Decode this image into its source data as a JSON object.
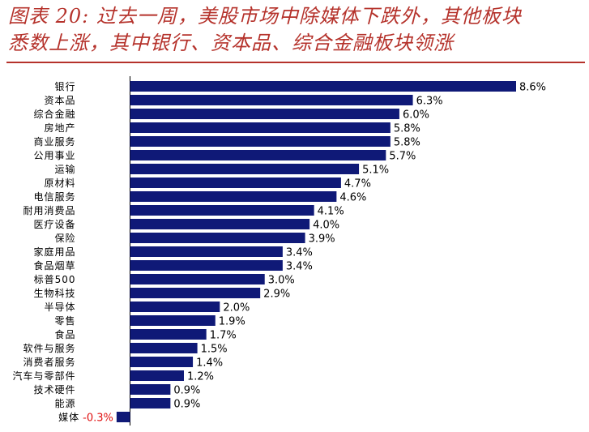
{
  "title": {
    "line1": "图表 20: 过去一周，美股市场中除媒体下跌外，其他板块",
    "line2": "悉数上涨，其中银行、资本品、综合金融板块领涨"
  },
  "colors": {
    "bar": "#0f1977",
    "title": "#b5322b",
    "negative_label": "#e01010"
  },
  "chart_data": {
    "type": "bar",
    "orientation": "horizontal",
    "categories": [
      "银行",
      "资本品",
      "综合金融",
      "房地产",
      "商业服务",
      "公用事业",
      "运输",
      "原材料",
      "电信服务",
      "耐用消费品",
      "医疗设备",
      "保险",
      "家庭用品",
      "食品烟草",
      "标普500",
      "生物科技",
      "半导体",
      "零售",
      "食品",
      "软件与服务",
      "消费者服务",
      "汽车与零部件",
      "技术硬件",
      "能源",
      "媒体"
    ],
    "values": [
      8.6,
      6.3,
      6.0,
      5.8,
      5.8,
      5.7,
      5.1,
      4.7,
      4.6,
      4.1,
      4.0,
      3.9,
      3.4,
      3.4,
      3.0,
      2.9,
      2.0,
      1.9,
      1.7,
      1.5,
      1.4,
      1.2,
      0.9,
      0.9,
      -0.3
    ],
    "value_labels": [
      "8.6%",
      "6.3%",
      "6.0%",
      "5.8%",
      "5.8%",
      "5.7%",
      "5.1%",
      "4.7%",
      "4.6%",
      "4.1%",
      "4.0%",
      "3.9%",
      "3.4%",
      "3.4%",
      "3.0%",
      "2.9%",
      "2.0%",
      "1.9%",
      "1.7%",
      "1.5%",
      "1.4%",
      "1.2%",
      "0.9%",
      "0.9%",
      "-0.3%"
    ],
    "xlim": [
      -0.3,
      8.6
    ],
    "grid": false,
    "legend": "none"
  }
}
